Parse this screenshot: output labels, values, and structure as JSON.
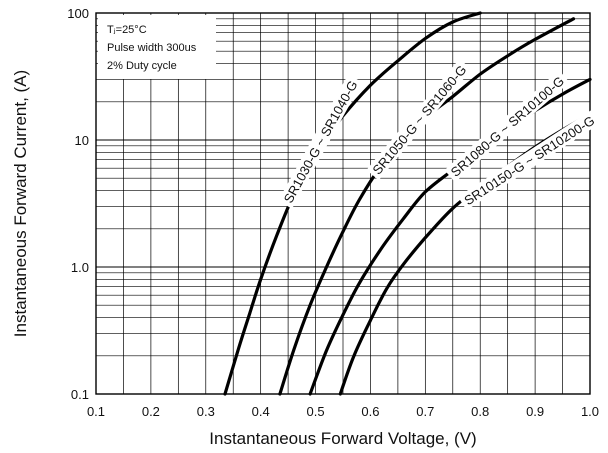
{
  "chart_data": {
    "type": "line",
    "y_scale": "log",
    "xlim": [
      0.1,
      1.0
    ],
    "ylim": [
      0.1,
      100
    ],
    "grid": true,
    "xlabel": "Instantaneous Forward Voltage, (V)",
    "ylabel": "Instantaneous Forward Current, (A)",
    "x_ticks": [
      "0.1",
      "0.2",
      "0.3",
      "0.4",
      "0.5",
      "0.6",
      "0.7",
      "0.8",
      "0.9",
      "1.0"
    ],
    "y_ticks": [
      "0.1",
      "1.0",
      "10",
      "100"
    ],
    "conditions": [
      "Tⱼ=25°C",
      "Pulse width 300us",
      "2% Duty cycle"
    ],
    "series": [
      {
        "name": "SR1030-G ~ SR1040-G",
        "x": [
          0.335,
          0.36,
          0.38,
          0.4,
          0.43,
          0.46,
          0.5,
          0.55,
          0.6,
          0.65,
          0.7,
          0.75,
          0.8
        ],
        "y": [
          0.1,
          0.23,
          0.43,
          0.8,
          1.8,
          3.7,
          8.0,
          15.5,
          27,
          42,
          63,
          85,
          100
        ]
      },
      {
        "name": "SR1050-G ~ SR1060-G",
        "x": [
          0.435,
          0.46,
          0.49,
          0.52,
          0.55,
          0.58,
          0.62,
          0.66,
          0.7,
          0.75,
          0.8,
          0.85,
          0.9,
          0.97
        ],
        "y": [
          0.1,
          0.22,
          0.5,
          1.0,
          1.9,
          3.4,
          6.3,
          10,
          15,
          22,
          33,
          46,
          62,
          90
        ]
      },
      {
        "name": "SR1080-G ~ SR10100-G",
        "x": [
          0.49,
          0.52,
          0.55,
          0.58,
          0.62,
          0.66,
          0.7,
          0.75,
          0.8,
          0.85,
          0.9,
          0.95,
          1.0
        ],
        "y": [
          0.1,
          0.22,
          0.42,
          0.75,
          1.4,
          2.4,
          3.9,
          5.8,
          8.5,
          12,
          17,
          23,
          30
        ]
      },
      {
        "name": "SR10150-G ~ SR10200-G",
        "x": [
          0.545,
          0.57,
          0.6,
          0.63,
          0.66,
          0.7,
          0.75,
          0.8,
          0.85,
          0.9,
          0.95,
          1.0
        ],
        "y": [
          0.1,
          0.2,
          0.38,
          0.68,
          1.05,
          1.7,
          2.9,
          4.3,
          6.2,
          8.8,
          12,
          16
        ]
      }
    ]
  }
}
